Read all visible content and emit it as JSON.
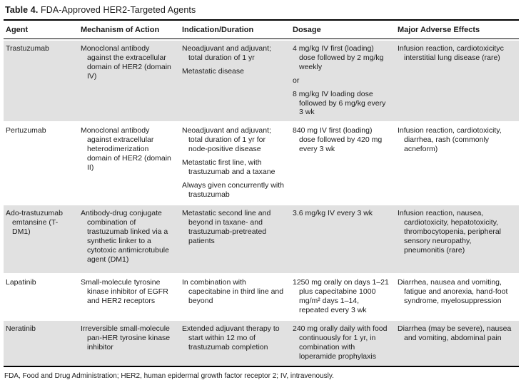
{
  "title": {
    "prefix": "Table 4.",
    "text": " FDA-Approved HER2-Targeted Agents"
  },
  "columns": [
    "Agent",
    "Mechanism of Action",
    "Indication/Duration",
    "Dosage",
    "Major Adverse Effects"
  ],
  "rows": [
    {
      "agent": "Trastuzumab",
      "mechanism": [
        "Monoclonal antibody against the extracellular domain of HER2 (domain IV)"
      ],
      "indication": [
        "Neoadjuvant and adjuvant; total duration of 1 yr",
        "Metastatic disease"
      ],
      "dosage": [
        "4 mg/kg IV first (loading) dose followed by 2 mg/kg weekly",
        "or",
        "8 mg/kg IV loading dose followed by 6 mg/kg every 3 wk"
      ],
      "adverse_effects": [
        "Infusion reaction, cardiotoxicityc interstitial lung disease (rare)"
      ]
    },
    {
      "agent": "Pertuzumab",
      "mechanism": [
        "Monoclonal antibody against extracellular heterodimerization domain of HER2 (domain II)"
      ],
      "indication": [
        "Neoadjuvant and adjuvant; total duration of 1 yr for node-positive disease",
        "Metastatic first line, with trastuzumab and a taxane",
        "Always given concurrently with trastuzumab"
      ],
      "dosage": [
        "840 mg IV first (loading) dose followed by 420 mg every 3 wk"
      ],
      "adverse_effects": [
        "Infusion reaction, cardiotoxicity, diarrhea, rash (commonly acneform)"
      ]
    },
    {
      "agent": "Ado-trastuzumab emtansine (T-DM1)",
      "mechanism": [
        "Antibody-drug conjugate combination of trastuzumab linked via a synthetic linker to a cytotoxic antimicrotubule agent (DM1)"
      ],
      "indication": [
        "Metastatic second line and beyond in taxane- and trastuzumab-pretreated patients"
      ],
      "dosage": [
        "3.6 mg/kg IV every 3 wk"
      ],
      "adverse_effects": [
        "Infusion reaction, nausea, cardiotoxicity, hepatotoxicity, thrombocytopenia, peripheral sensory neuropathy, pneumonitis (rare)"
      ]
    },
    {
      "agent": "Lapatinib",
      "mechanism": [
        "Small-molecule tyrosine kinase inhibitor of EGFR and HER2 receptors"
      ],
      "indication": [
        "In combination with capecitabine in third line and beyond"
      ],
      "dosage": [
        "1250 mg orally on days 1–21 plus capecitabine 1000 mg/m² days 1–14, repeated every 3 wk"
      ],
      "adverse_effects": [
        "Diarrhea, nausea and vomiting, fatigue and anorexia, hand-foot syndrome, myelosuppression"
      ]
    },
    {
      "agent": "Neratinib",
      "mechanism": [
        "Irreversible small-molecule pan-HER tyrosine kinase inhibitor"
      ],
      "indication": [
        "Extended adjuvant therapy to start within 12 mo of trastuzumab completion"
      ],
      "dosage": [
        "240 mg orally daily with food continuously for 1 yr, in combination with loperamide prophylaxis"
      ],
      "adverse_effects": [
        "Diarrhea (may be severe), nausea and vomiting, abdominal pain"
      ]
    }
  ],
  "footnote": "FDA, Food and Drug Administration; HER2, human epidermal growth factor receptor 2; IV, intravenously.",
  "colors": {
    "row_shading": "#e1e1e1",
    "rule": "#000000",
    "text": "#1c1c1c"
  }
}
